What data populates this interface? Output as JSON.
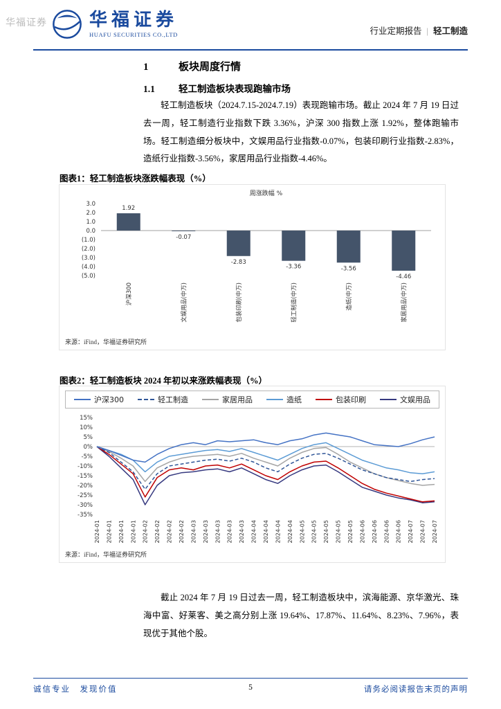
{
  "watermark": "华福证券",
  "header": {
    "brand_cn": "华福证券",
    "brand_en": "HUAFU SECURITIES CO.,LTD",
    "report_type": "行业定期报告",
    "separator": "|",
    "sector": "轻工制造"
  },
  "section": {
    "number": "1",
    "title": "板块周度行情"
  },
  "subsection": {
    "number": "1.1",
    "title": "轻工制造板块表现跑输市场"
  },
  "paragraphs": {
    "p1": "轻工制造板块（2024.7.15-2024.7.19）表现跑输市场。截止 2024 年 7 月 19 日过去一周，轻工制造行业指数下跌 3.36%，沪深 300 指数上涨 1.92%，整体跑输市场。轻工制造细分板块中，文娱用品行业指数-0.07%，包装印刷行业指数-2.83%，造纸行业指数-3.56%，家居用品行业指数-4.46%。",
    "p2": "截止 2024 年 7 月 19 日过去一周，轻工制造板块中，滨海能源、京华激光、珠海中富、好莱客、美之高分别上涨 19.64%、17.87%、11.64%、8.23%、7.96%，表现优于其他个股。"
  },
  "figure1": {
    "label": "图表1：",
    "title": "轻工制造板块涨跌幅表现（%）",
    "source": "来源：iFind，华福证券研究所"
  },
  "figure2": {
    "label": "图表2：",
    "title": "轻工制造板块 2024 年初以来涨跌幅表现（%）",
    "source": "来源：iFind，华福证券研究所"
  },
  "footer": {
    "left": "诚信专业　发现价值",
    "page": "5",
    "right": "请务必阅读报告末页的声明"
  },
  "chart_data": [
    {
      "type": "bar",
      "title": "周涨跌幅 %",
      "categories": [
        "沪深300",
        "文娱用品(中万)",
        "包装印刷(中万)",
        "轻工制造(中万)",
        "造纸(中万)",
        "家居用品(中万)"
      ],
      "values": [
        1.92,
        -0.07,
        -2.83,
        -3.36,
        -3.56,
        -4.46
      ],
      "data_labels": [
        "1.92",
        "-0.07",
        "-2.83",
        "-3.36",
        "-3.56",
        "-4.46"
      ],
      "ylim": [
        -5,
        3
      ],
      "y_ticks": [
        {
          "label": "3.0",
          "value": 3
        },
        {
          "label": "2.0",
          "value": 2
        },
        {
          "label": "1.0",
          "value": 1
        },
        {
          "label": "0.0",
          "value": 0
        },
        {
          "label": "(1.0)",
          "value": -1
        },
        {
          "label": "(2.0)",
          "value": -2
        },
        {
          "label": "(3.0)",
          "value": -3
        },
        {
          "label": "(4.0)",
          "value": -4
        },
        {
          "label": "(5.0)",
          "value": -5
        }
      ],
      "bar_color": "#44546A",
      "grid": false,
      "xlabel": "",
      "ylabel": ""
    },
    {
      "type": "line",
      "legend_position": "top",
      "ylim": [
        -35,
        15
      ],
      "y_ticks": [
        {
          "label": "15%",
          "value": 15
        },
        {
          "label": "10%",
          "value": 10
        },
        {
          "label": "5%",
          "value": 5
        },
        {
          "label": "0%",
          "value": 0
        },
        {
          "label": "-5%",
          "value": -5
        },
        {
          "label": "-10%",
          "value": -10
        },
        {
          "label": "-15%",
          "value": -15
        },
        {
          "label": "-20%",
          "value": -20
        },
        {
          "label": "-25%",
          "value": -25
        },
        {
          "label": "-30%",
          "value": -30
        },
        {
          "label": "-35%",
          "value": -35
        }
      ],
      "x_labels": [
        "2024-01",
        "2024-01",
        "2024-01",
        "2024-01",
        "2024-02",
        "2024-02",
        "2024-02",
        "2024-02",
        "2024-03",
        "2024-03",
        "2024-03",
        "2024-03",
        "2024-03",
        "2024-04",
        "2024-04",
        "2024-04",
        "2024-04",
        "2024-05",
        "2024-05",
        "2024-05",
        "2024-05",
        "2024-05",
        "2024-06",
        "2024-06",
        "2024-06",
        "2024-06",
        "2024-07",
        "2024-07",
        "2024-07"
      ],
      "series": [
        {
          "name": "沪深300",
          "color": "#4472C4",
          "dash": false,
          "values": [
            0,
            -2,
            -4.5,
            -7,
            -8,
            -4,
            -1,
            1,
            2,
            1,
            3,
            2.5,
            3,
            3.5,
            2,
            1,
            3,
            4,
            6,
            7,
            6,
            5,
            3,
            1,
            0.5,
            0,
            1.5,
            3.5,
            5
          ]
        },
        {
          "name": "轻工制造",
          "color": "#2F5597",
          "dash": true,
          "values": [
            0,
            -3,
            -8,
            -13,
            -22,
            -14,
            -10,
            -9,
            -8,
            -7,
            -6.5,
            -7.5,
            -6,
            -8,
            -11,
            -13,
            -9,
            -6,
            -4,
            -3.5,
            -6,
            -9,
            -12,
            -14,
            -16,
            -17,
            -18,
            -17,
            -16.5
          ]
        },
        {
          "name": "家居用品",
          "color": "#A5A5A5",
          "dash": false,
          "values": [
            0,
            -2.5,
            -6,
            -10,
            -18,
            -11,
            -8,
            -6,
            -5,
            -4.5,
            -4,
            -5,
            -3.5,
            -6,
            -8,
            -10,
            -6,
            -3,
            -1,
            -0.5,
            -4,
            -8,
            -11,
            -14,
            -16,
            -17.5,
            -19,
            -20,
            -19.5
          ]
        },
        {
          "name": "造纸",
          "color": "#5B9BD5",
          "dash": false,
          "values": [
            0,
            -2,
            -4,
            -7,
            -13,
            -8,
            -5,
            -4,
            -3,
            -2,
            -1.5,
            -2.5,
            -1,
            -3,
            -5,
            -7,
            -4,
            -1,
            1,
            2,
            -1,
            -4,
            -7,
            -9,
            -11,
            -12,
            -13.5,
            -14,
            -13
          ]
        },
        {
          "name": "包装印刷",
          "color": "#C00000",
          "dash": false,
          "values": [
            0,
            -4,
            -9,
            -14,
            -26,
            -16,
            -12,
            -11,
            -12,
            -10,
            -9.5,
            -11,
            -9,
            -12,
            -15,
            -17,
            -13,
            -10,
            -8,
            -7.5,
            -11,
            -15,
            -19,
            -22,
            -24,
            -25.5,
            -27,
            -28.5,
            -28
          ]
        },
        {
          "name": "文娱用品",
          "color": "#35387F",
          "dash": false,
          "values": [
            0,
            -5,
            -11,
            -17,
            -30,
            -20,
            -15,
            -13.5,
            -13,
            -12,
            -11.5,
            -13,
            -11,
            -14,
            -17,
            -19,
            -15,
            -12,
            -10,
            -9.5,
            -13,
            -17,
            -21,
            -23,
            -25,
            -26.5,
            -27.5,
            -29,
            -28.5
          ]
        }
      ]
    }
  ]
}
